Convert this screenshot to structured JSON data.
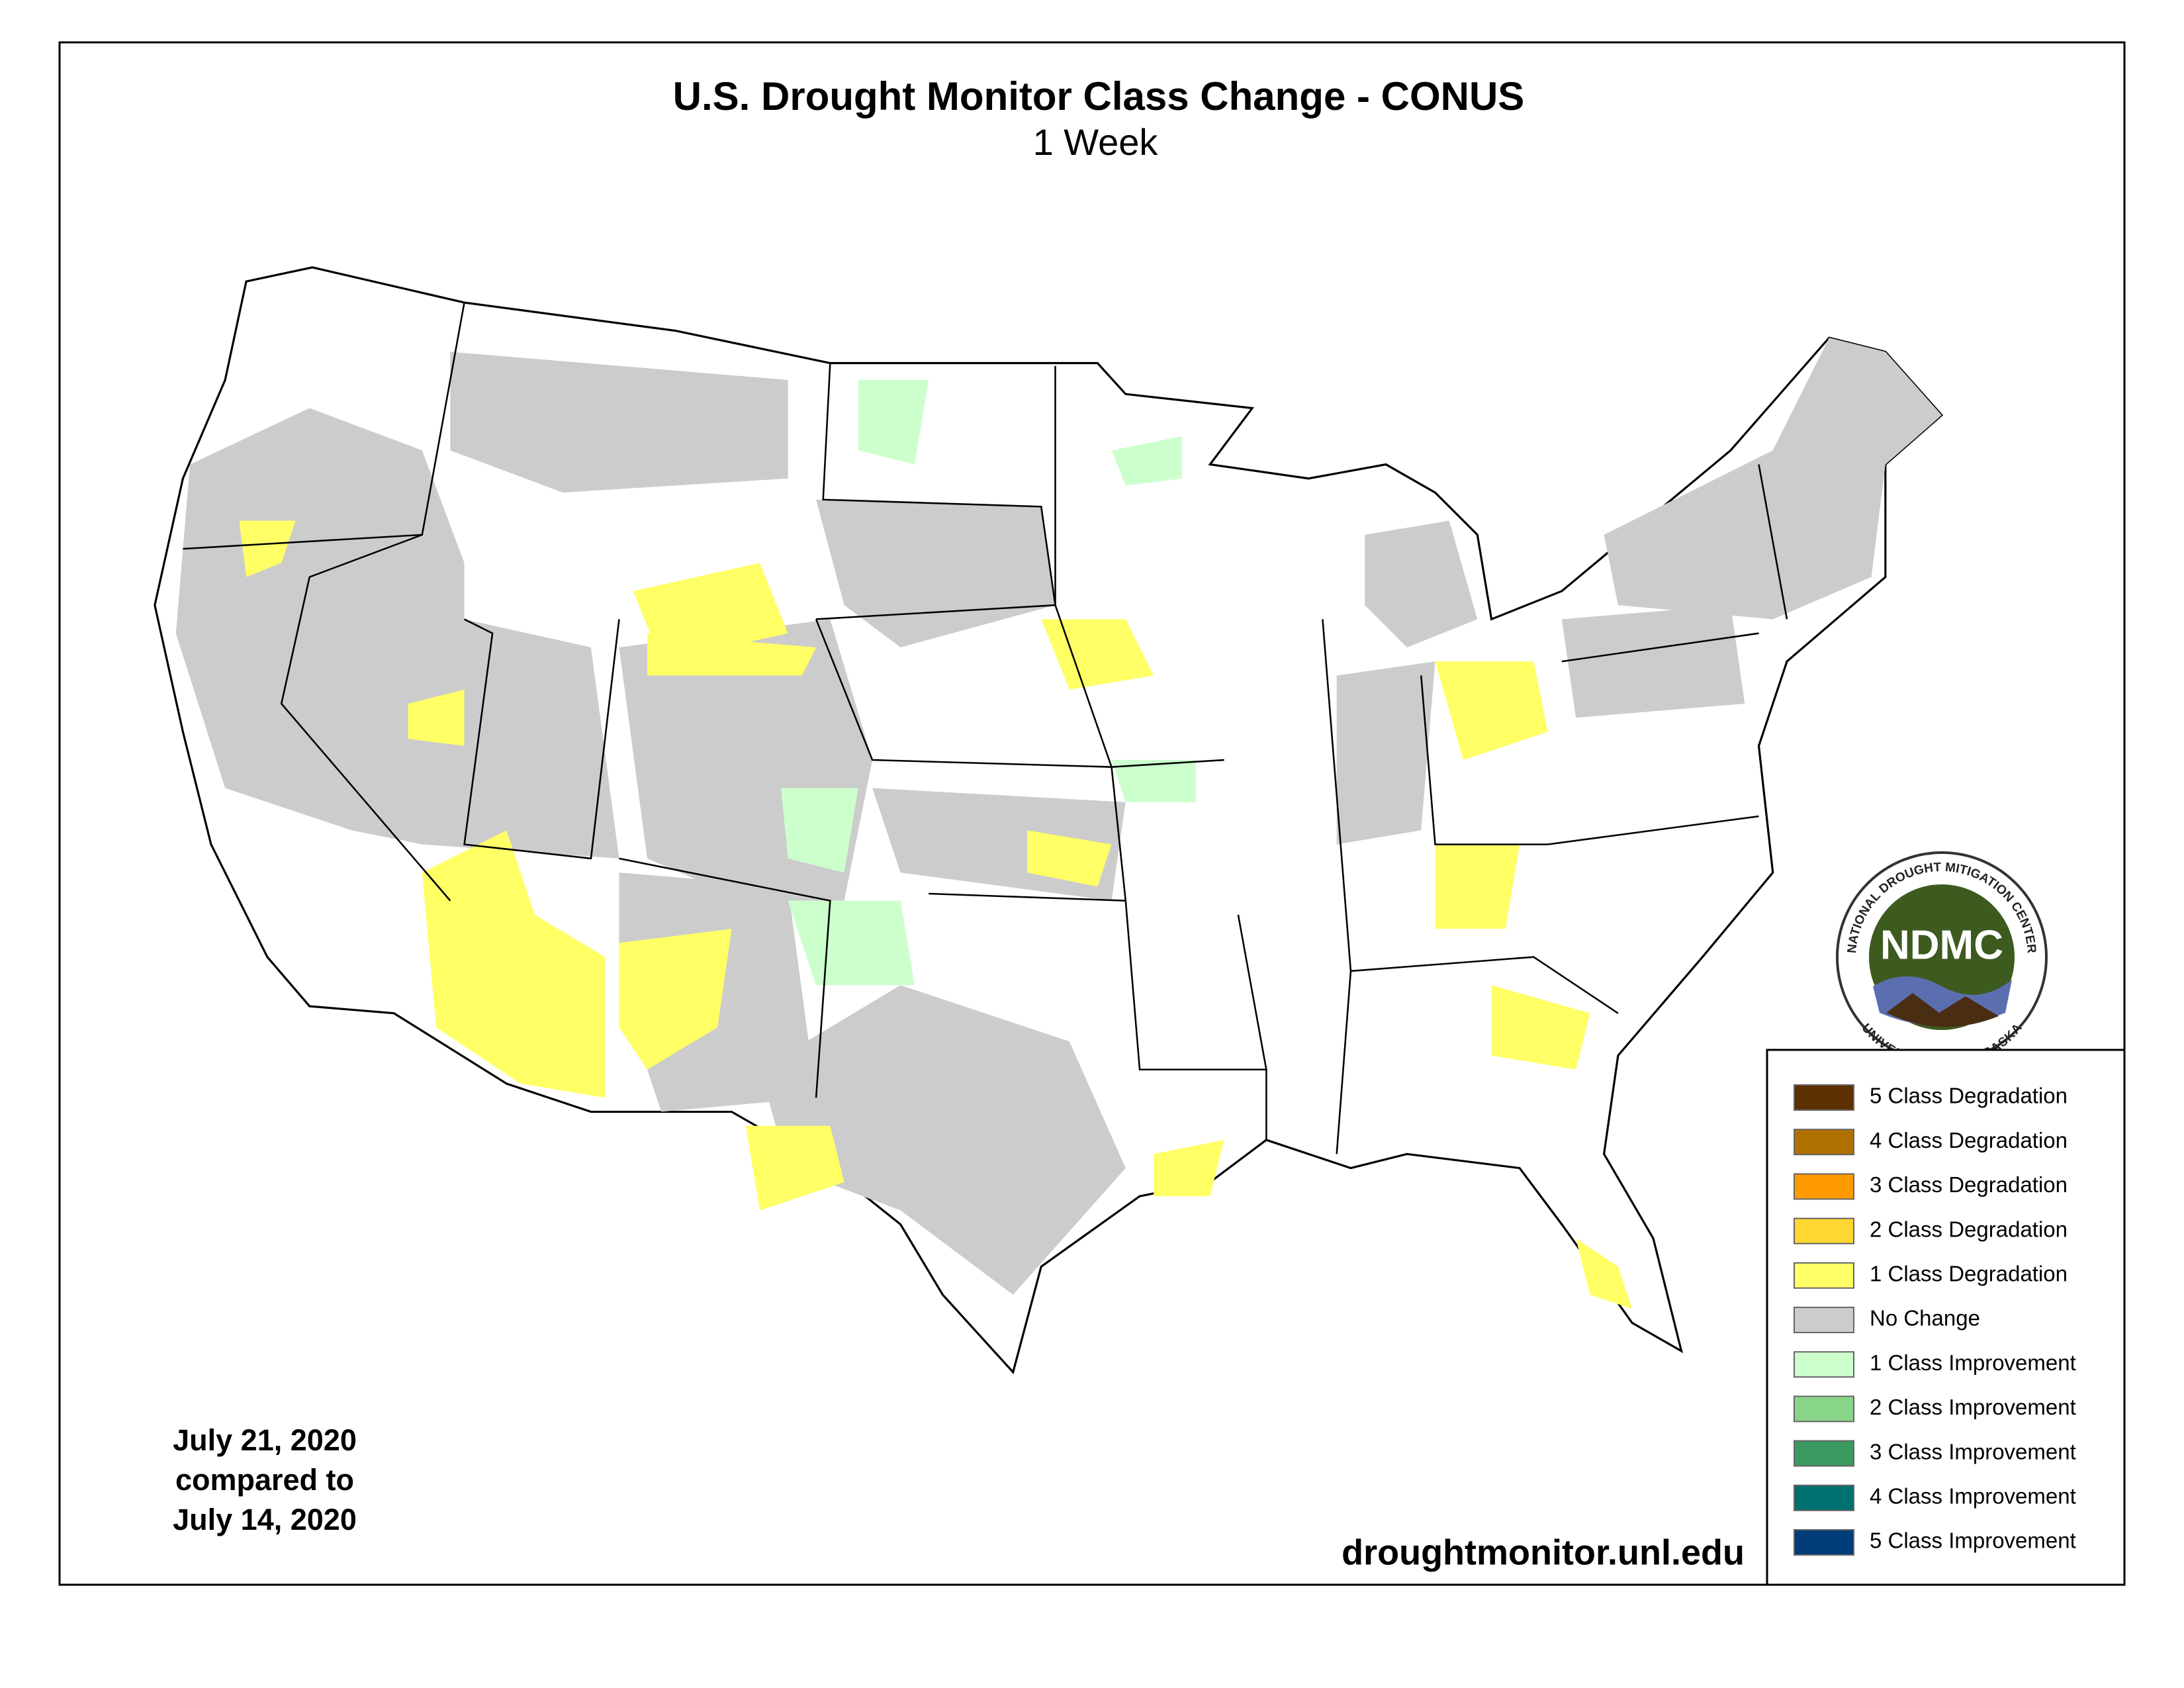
{
  "header": {
    "title": "U.S. Drought Monitor Class Change - CONUS",
    "subtitle": "1 Week"
  },
  "legend": {
    "items": [
      {
        "label": "5 Class Degradation",
        "color": "#5c3000"
      },
      {
        "label": "4 Class Degradation",
        "color": "#b07000"
      },
      {
        "label": "3 Class Degradation",
        "color": "#ff9900"
      },
      {
        "label": "2 Class Degradation",
        "color": "#ffd632"
      },
      {
        "label": "1 Class Degradation",
        "color": "#ffff66"
      },
      {
        "label": "No Change",
        "color": "#cccccc"
      },
      {
        "label": "1 Class Improvement",
        "color": "#ccffcc"
      },
      {
        "label": "2 Class Improvement",
        "color": "#88d488"
      },
      {
        "label": "3 Class Improvement",
        "color": "#3a9a60"
      },
      {
        "label": "4 Class Improvement",
        "color": "#006f70"
      },
      {
        "label": "5 Class Improvement",
        "color": "#003c78"
      }
    ]
  },
  "dates": [
    "July 21, 2020",
    "compared to",
    "July 14, 2020"
  ],
  "source": "droughtmonitor.unl.edu",
  "logo": {
    "acronym": "NDMC",
    "top_text": "NATIONAL DROUGHT MITIGATION CENTER",
    "bottom_text": "UNIVERSITY OF NEBRASKA"
  }
}
